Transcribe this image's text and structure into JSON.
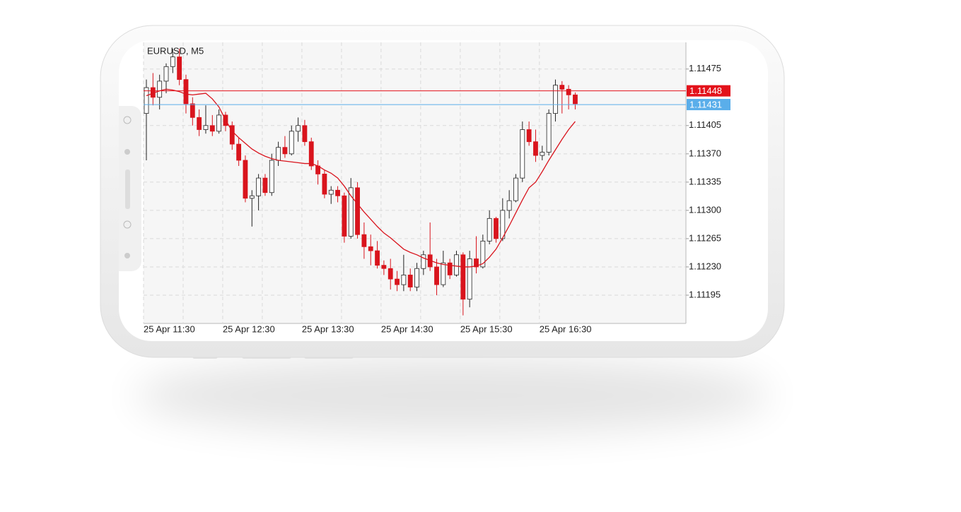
{
  "chart_data": {
    "type": "candlestick",
    "title": "EURUSD, M5",
    "categories": [
      "25 Apr 11:30",
      null,
      null,
      null,
      null,
      null,
      null,
      null,
      null,
      null,
      null,
      null,
      "25 Apr 12:30",
      null,
      null,
      null,
      null,
      null,
      null,
      null,
      null,
      null,
      null,
      null,
      "25 Apr 13:30",
      null,
      null,
      null,
      null,
      null,
      null,
      null,
      null,
      null,
      null,
      null,
      "25 Apr 14:30",
      null,
      null,
      null,
      null,
      null,
      null,
      null,
      null,
      null,
      null,
      null,
      "25 Apr 15:30",
      null,
      null,
      null,
      null,
      null,
      null,
      null,
      null,
      null,
      null,
      null,
      "25 Apr 16:30",
      null,
      null,
      null,
      null,
      null
    ],
    "open": [
      1.1142,
      1.11452,
      1.1144,
      1.1146,
      1.11478,
      1.1149,
      1.11462,
      1.11432,
      1.11415,
      1.114,
      1.11405,
      1.11398,
      1.11418,
      1.11405,
      1.11382,
      1.11362,
      1.11315,
      1.11318,
      1.1134,
      1.11322,
      1.11362,
      1.11378,
      1.1137,
      1.11398,
      1.11405,
      1.11385,
      1.11355,
      1.11345,
      1.1132,
      1.11325,
      1.11318,
      1.11268,
      1.11328,
      1.1127,
      1.11255,
      1.1125,
      1.11232,
      1.11228,
      1.11215,
      1.11208,
      1.1122,
      1.11205,
      1.11228,
      1.11245,
      1.1123,
      1.11208,
      1.11235,
      1.1122,
      1.11245,
      1.1119,
      1.1124,
      1.1123,
      1.11262,
      1.1129,
      1.11265,
      1.113,
      1.11312,
      1.1134,
      1.114,
      1.11385,
      1.11368,
      1.11372,
      1.1142,
      1.11455,
      1.1145,
      1.11443
    ],
    "high": [
      1.11462,
      1.1147,
      1.11468,
      1.11482,
      1.115,
      1.115,
      1.11468,
      1.1144,
      1.11425,
      1.1143,
      1.11418,
      1.11425,
      1.11422,
      1.1141,
      1.1139,
      1.11368,
      1.11325,
      1.11345,
      1.11345,
      1.1137,
      1.11385,
      1.11392,
      1.11405,
      1.11415,
      1.11412,
      1.1139,
      1.11362,
      1.1135,
      1.1133,
      1.1133,
      1.11322,
      1.1134,
      1.11335,
      1.11285,
      1.1127,
      1.11262,
      1.11238,
      1.1124,
      1.11225,
      1.11245,
      1.11228,
      1.11235,
      1.1125,
      1.11285,
      1.1124,
      1.1125,
      1.1124,
      1.1125,
      1.11248,
      1.1125,
      1.11268,
      1.1127,
      1.113,
      1.11292,
      1.11315,
      1.11325,
      1.11345,
      1.1141,
      1.1141,
      1.114,
      1.1138,
      1.11425,
      1.11462,
      1.1146,
      1.11455,
      1.11446
    ],
    "low": [
      1.11362,
      1.1143,
      1.11425,
      1.11445,
      1.1147,
      1.11455,
      1.1142,
      1.11405,
      1.11392,
      1.11395,
      1.11392,
      1.11395,
      1.11398,
      1.11375,
      1.11355,
      1.1131,
      1.1128,
      1.113,
      1.11318,
      1.11318,
      1.11355,
      1.11365,
      1.11368,
      1.11385,
      1.1138,
      1.1135,
      1.11332,
      1.11315,
      1.11308,
      1.1131,
      1.1126,
      1.11265,
      1.11265,
      1.1124,
      1.11232,
      1.11228,
      1.1122,
      1.11202,
      1.112,
      1.112,
      1.112,
      1.112,
      1.1122,
      1.11225,
      1.11195,
      1.11205,
      1.11215,
      1.11218,
      1.1117,
      1.1118,
      1.11222,
      1.11228,
      1.11258,
      1.1126,
      1.11262,
      1.1129,
      1.1131,
      1.11335,
      1.1138,
      1.1136,
      1.11362,
      1.11368,
      1.1141,
      1.1142,
      1.11425,
      1.11425
    ],
    "close": [
      1.11452,
      1.1144,
      1.1146,
      1.11478,
      1.1149,
      1.11462,
      1.11432,
      1.11415,
      1.114,
      1.11405,
      1.11398,
      1.11418,
      1.11405,
      1.11382,
      1.11362,
      1.11315,
      1.11318,
      1.1134,
      1.11322,
      1.11362,
      1.11378,
      1.1137,
      1.11398,
      1.11405,
      1.11385,
      1.11355,
      1.11345,
      1.1132,
      1.11325,
      1.11318,
      1.11268,
      1.11328,
      1.1127,
      1.11255,
      1.1125,
      1.11232,
      1.11228,
      1.11215,
      1.11208,
      1.1122,
      1.11205,
      1.11228,
      1.11245,
      1.1123,
      1.11208,
      1.11235,
      1.1122,
      1.11245,
      1.1119,
      1.1124,
      1.1123,
      1.11262,
      1.1129,
      1.11265,
      1.113,
      1.11312,
      1.1134,
      1.114,
      1.11385,
      1.11368,
      1.11372,
      1.1142,
      1.11455,
      1.1145,
      1.11443,
      1.11432
    ],
    "up_color": "#ffffff",
    "down_color": "#d9141d",
    "ma": {
      "color": "#d9141d",
      "values": [
        1.11442,
        1.11445,
        1.11448,
        1.1145,
        1.11449,
        1.11447,
        1.11444,
        1.11443,
        1.11444,
        1.11445,
        1.11438,
        1.11428,
        1.11412,
        1.11398,
        1.1139,
        1.11383,
        1.11376,
        1.11371,
        1.11367,
        1.11364,
        1.11362,
        1.11361,
        1.1136,
        1.11359,
        1.11358,
        1.11358,
        1.11355,
        1.1135,
        1.11346,
        1.1134,
        1.1133,
        1.11318,
        1.11308,
        1.11298,
        1.11289,
        1.1128,
        1.11272,
        1.11266,
        1.11259,
        1.11252,
        1.11248,
        1.11245,
        1.11241,
        1.11238,
        1.11235,
        1.11233,
        1.11232,
        1.11231,
        1.1123,
        1.1123,
        1.11231,
        1.11234,
        1.11242,
        1.11252,
        1.11266,
        1.11281,
        1.11297,
        1.11313,
        1.11328,
        1.11335,
        1.11348,
        1.11362,
        1.11375,
        1.11388,
        1.114,
        1.1141
      ]
    },
    "price_lines": [
      {
        "value": 1.11448,
        "color": "#e3121b"
      },
      {
        "value": 1.11431,
        "color": "#5aaeea"
      }
    ],
    "ylim": [
      1.1116,
      1.11508
    ],
    "yticks": [
      1.11195,
      {
        "value": 1.1123,
        "label": "1.11230"
      },
      1.11265,
      {
        "value": 1.113,
        "label": "1.11300"
      },
      1.11335,
      {
        "value": 1.1137,
        "label": "1.11370"
      },
      1.11405,
      1.11475
    ],
    "grid": true
  }
}
